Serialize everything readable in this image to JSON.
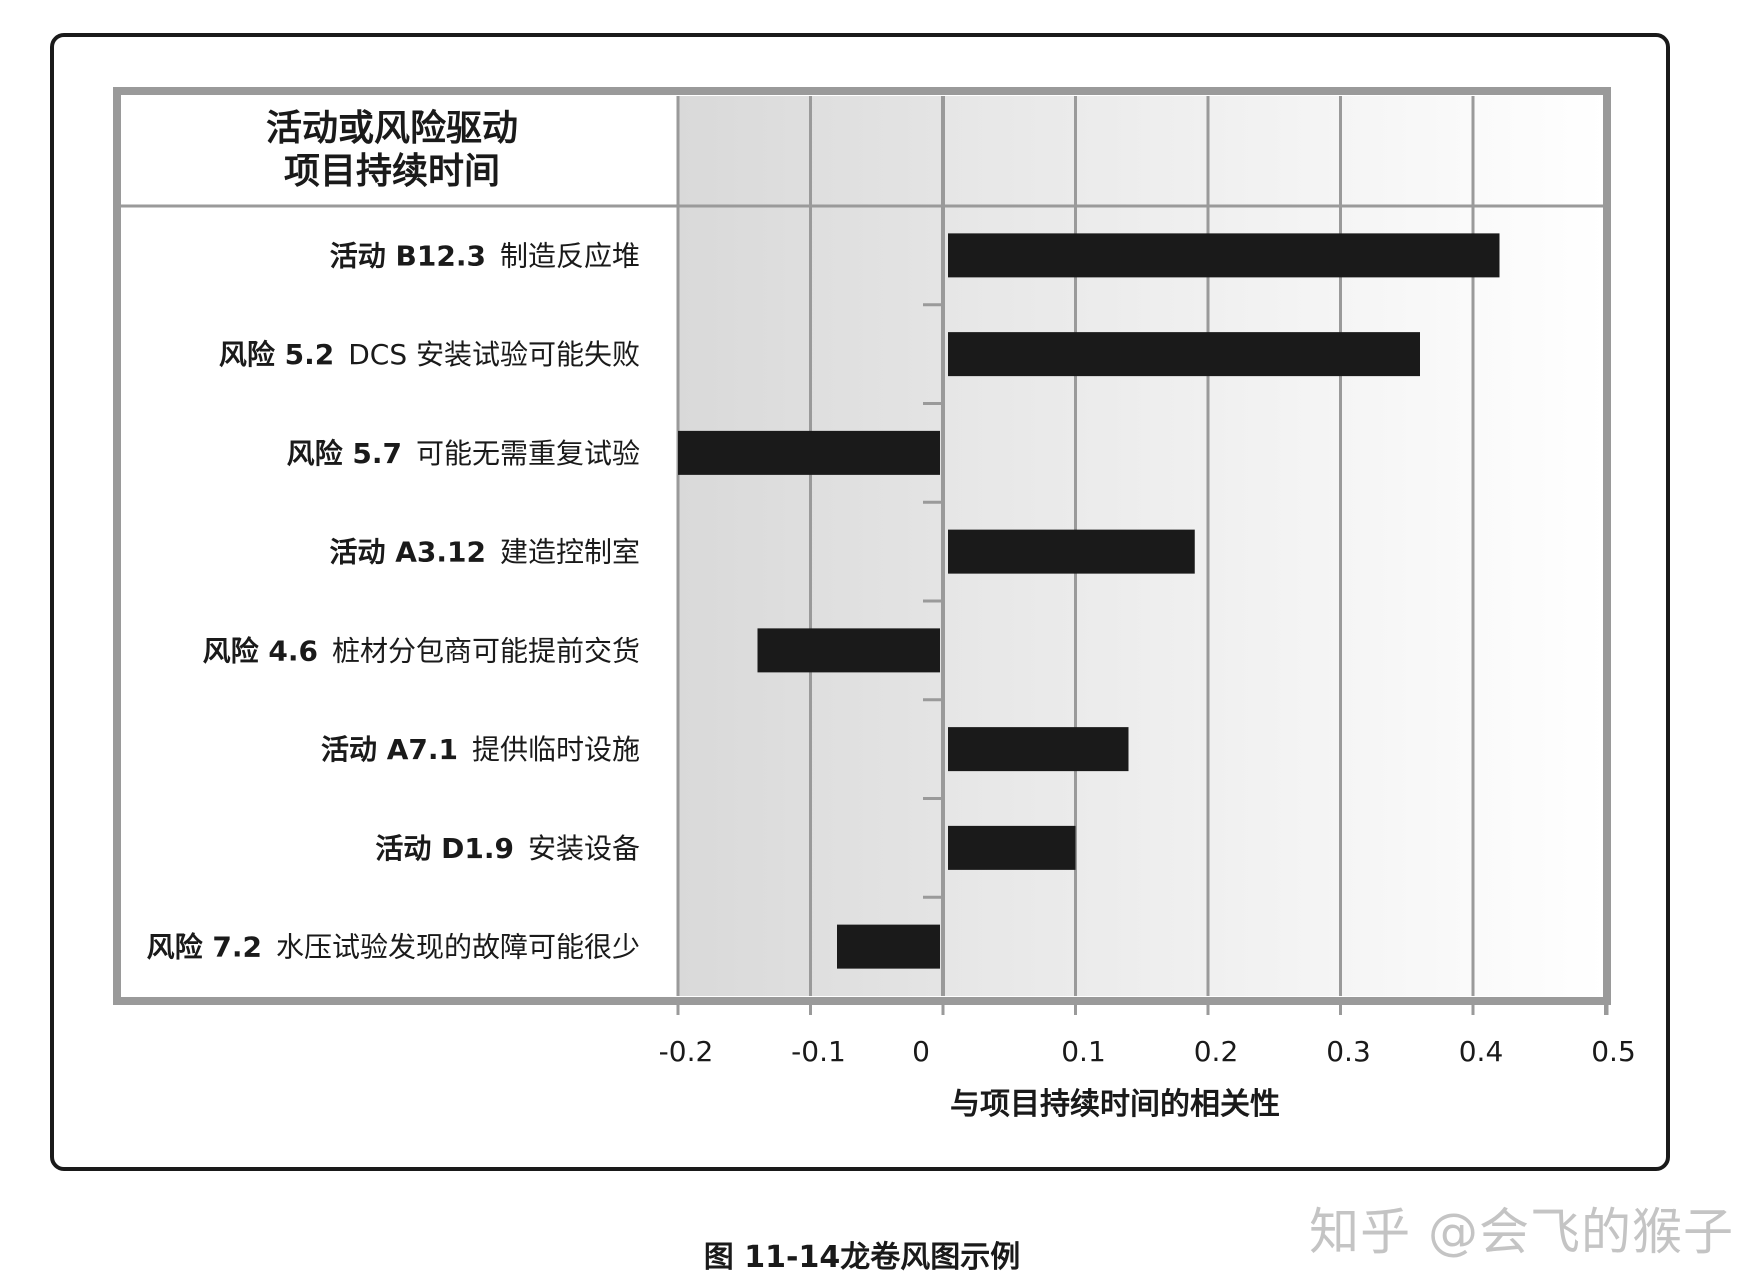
{
  "caption": "图 11-14龙卷风图示例",
  "watermark": "知乎 @会飞的猴子",
  "chart_data": {
    "type": "bar",
    "orientation": "horizontal",
    "title_lines": [
      "活动或风险驱动",
      "项目持续时间"
    ],
    "xlabel": "与项目持续时间的相关性",
    "xlim": [
      -0.2,
      0.5
    ],
    "xticks": [
      "-0.2",
      "-0.1",
      "0",
      "0.1",
      "0.2",
      "0.3",
      "0.4",
      "0.5"
    ],
    "grid": true,
    "bar_color": "#1a1a1a",
    "categories": [
      {
        "code": "活动 B12.3",
        "desc": "制造反应堆"
      },
      {
        "code": "风险 5.2",
        "desc": "DCS 安装试验可能失败"
      },
      {
        "code": "风险 5.7",
        "desc": "可能无需重复试验"
      },
      {
        "code": "活动 A3.12",
        "desc": "建造控制室"
      },
      {
        "code": "风险 4.6",
        "desc": "桩材分包商可能提前交货"
      },
      {
        "code": "活动 A7.1",
        "desc": "提供临时设施"
      },
      {
        "code": "活动 D1.9",
        "desc": "安装设备"
      },
      {
        "code": "风险 7.2",
        "desc": "水压试验发现的故障可能很少"
      }
    ],
    "values": [
      0.42,
      0.36,
      -0.2,
      0.19,
      -0.14,
      0.14,
      0.1,
      -0.08
    ]
  }
}
